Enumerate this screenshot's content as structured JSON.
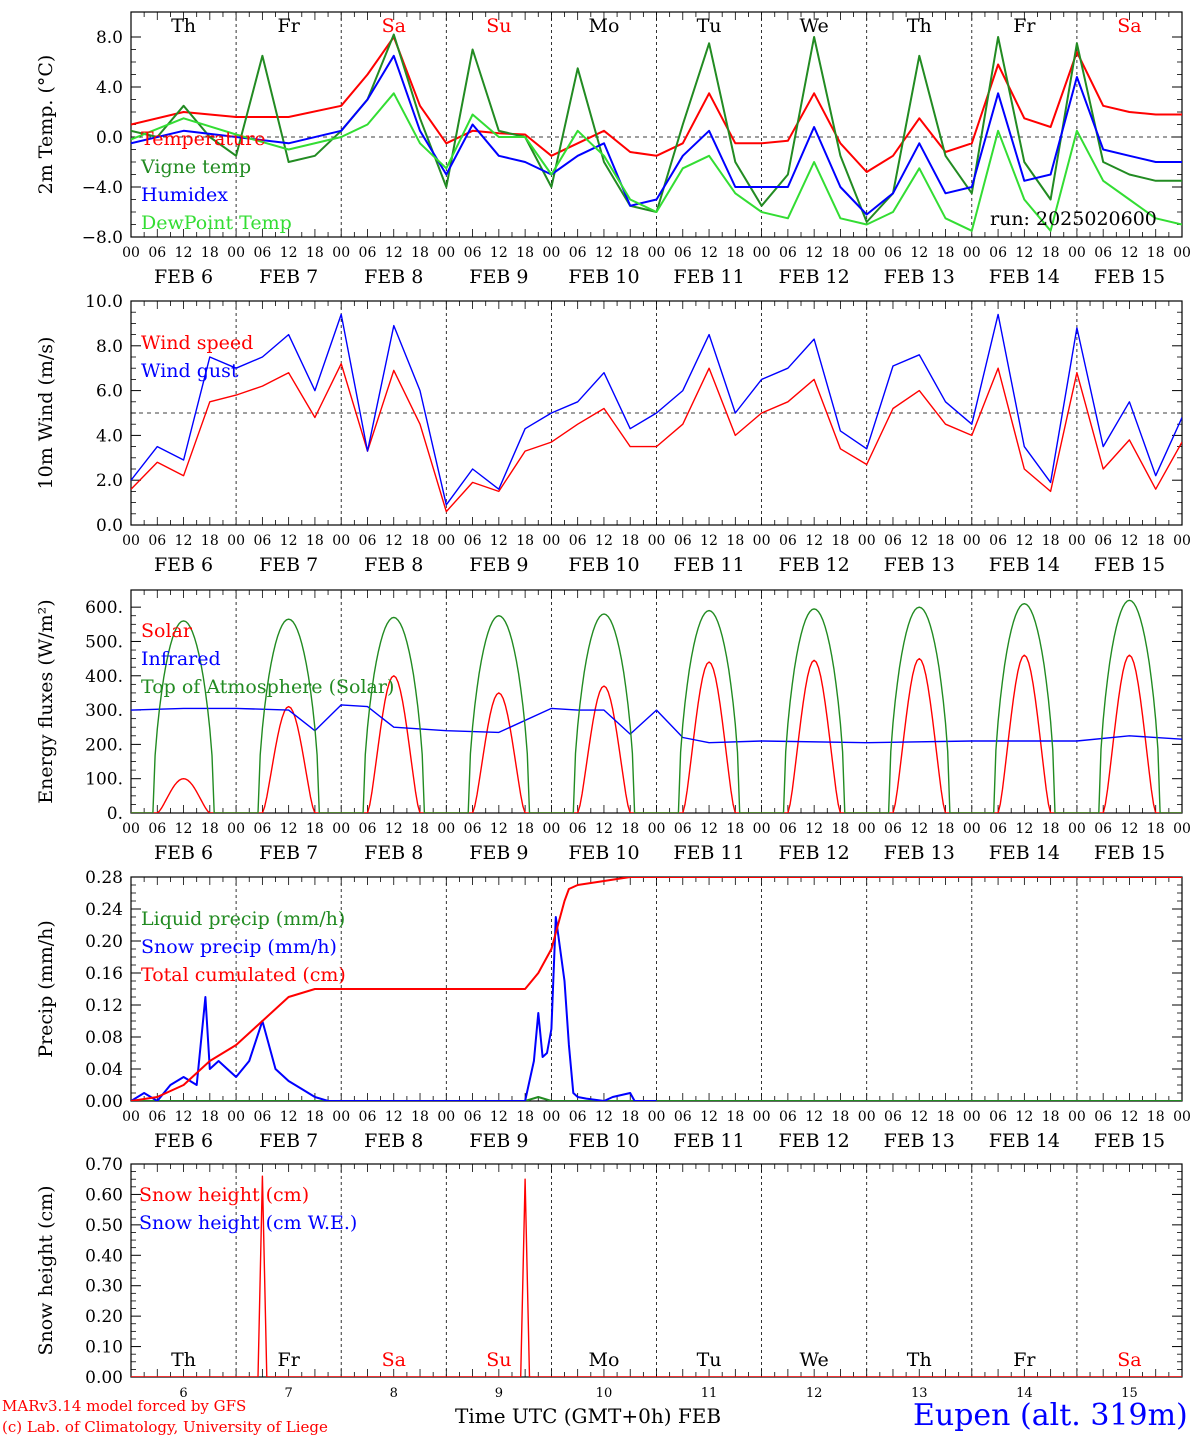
{
  "header": {
    "run_label": "run: 2025020600",
    "station": "Eupen (alt. 319m)",
    "credit_line1": "MARv3.14 model forced by GFS",
    "credit_line2": "(c) Lab. of Climatology, University of Liege",
    "xaxis_title": "Time UTC (GMT+0h) FEB"
  },
  "colors": {
    "red": "#ff0000",
    "green": "#228b22",
    "blue": "#0000ff",
    "lightgreen": "#33dd33",
    "axis": "#000000"
  },
  "chart_data": [
    {
      "type": "line",
      "id": "temp",
      "ylabel": "2m Temp. (°C)",
      "ylim": [
        -8,
        10
      ],
      "yticks": [
        -8,
        -4,
        0,
        4,
        8
      ],
      "ytick_labels": [
        "−8.0",
        "−4.0",
        "0.0",
        "4.0",
        "8.0"
      ],
      "ref_line": 0,
      "day_labels_top": [
        {
          "day": "Th",
          "weekend": false
        },
        {
          "day": "Fr",
          "weekend": false
        },
        {
          "day": "Sa",
          "weekend": true
        },
        {
          "day": "Su",
          "weekend": true
        },
        {
          "day": "Mo",
          "weekend": false
        },
        {
          "day": "Tu",
          "weekend": false
        },
        {
          "day": "We",
          "weekend": false
        },
        {
          "day": "Th",
          "weekend": false
        },
        {
          "day": "Fr",
          "weekend": false
        },
        {
          "day": "Sa",
          "weekend": true
        }
      ],
      "series": [
        {
          "name": "Temperature",
          "color": "red",
          "x": [
            0,
            12,
            24,
            36,
            48,
            54,
            60,
            66,
            72,
            78,
            84,
            90,
            96,
            102,
            108,
            114,
            120,
            126,
            132,
            138,
            144,
            150,
            156,
            162,
            168,
            174,
            180,
            186,
            192,
            198,
            204,
            210,
            216,
            222,
            228,
            234,
            240
          ],
          "y": [
            1.0,
            2.0,
            1.6,
            1.6,
            2.5,
            5.0,
            8.0,
            2.5,
            -0.5,
            0.5,
            0.3,
            0.2,
            -1.5,
            -0.5,
            0.5,
            -1.2,
            -1.5,
            -0.5,
            3.5,
            -0.5,
            -0.5,
            -0.3,
            3.5,
            -0.5,
            -2.8,
            -1.5,
            1.5,
            -1.2,
            -0.5,
            5.8,
            1.5,
            0.8,
            6.8,
            2.5,
            2.0,
            1.8,
            1.8
          ]
        },
        {
          "name": "Vigne temp",
          "color": "green",
          "x": [
            0,
            6,
            12,
            18,
            24,
            30,
            36,
            42,
            48,
            54,
            60,
            66,
            72,
            78,
            84,
            90,
            96,
            102,
            108,
            114,
            120,
            126,
            132,
            138,
            144,
            150,
            156,
            162,
            168,
            174,
            180,
            186,
            192,
            198,
            204,
            210,
            216,
            222,
            228,
            234,
            240
          ],
          "y": [
            0.5,
            0.0,
            2.5,
            0.0,
            -1.5,
            6.5,
            -2.0,
            -1.5,
            0.5,
            3.0,
            8.2,
            1.5,
            -4.0,
            7.0,
            0.5,
            0.0,
            -4.0,
            5.5,
            -2.0,
            -5.5,
            -6.0,
            1.0,
            7.5,
            -2.0,
            -5.5,
            -3.0,
            8.0,
            -1.5,
            -6.8,
            -4.5,
            6.5,
            -1.5,
            -4.5,
            8.0,
            -2.0,
            -5.0,
            7.5,
            -2.0,
            -3.0,
            -3.5,
            -3.5
          ]
        },
        {
          "name": "Humidex",
          "color": "blue",
          "x": [
            0,
            12,
            24,
            36,
            48,
            54,
            60,
            66,
            72,
            78,
            84,
            90,
            96,
            102,
            108,
            114,
            120,
            126,
            132,
            138,
            144,
            150,
            156,
            162,
            168,
            174,
            180,
            186,
            192,
            198,
            204,
            210,
            216,
            222,
            228,
            234,
            240
          ],
          "y": [
            -0.5,
            0.5,
            0.0,
            -0.5,
            0.5,
            3.0,
            6.5,
            0.5,
            -3.0,
            1.0,
            -1.5,
            -2.0,
            -3.0,
            -1.5,
            -0.5,
            -5.5,
            -5.0,
            -1.5,
            0.5,
            -4.0,
            -4.0,
            -4.0,
            0.8,
            -4.0,
            -6.2,
            -4.5,
            -0.5,
            -4.5,
            -4.0,
            3.5,
            -3.5,
            -3.0,
            4.8,
            -1.0,
            -1.5,
            -2.0,
            -2.0
          ]
        },
        {
          "name": "DewPoint Temp",
          "color": "lightgreen",
          "x": [
            0,
            12,
            24,
            36,
            48,
            54,
            60,
            66,
            72,
            78,
            84,
            90,
            96,
            102,
            108,
            114,
            120,
            126,
            132,
            138,
            144,
            150,
            156,
            162,
            168,
            174,
            180,
            186,
            192,
            198,
            204,
            210,
            216,
            222,
            228,
            234,
            240
          ],
          "y": [
            -0.2,
            1.5,
            0.2,
            -1.0,
            0.0,
            1.0,
            3.5,
            -0.5,
            -2.5,
            1.8,
            0.0,
            0.0,
            -3.0,
            0.5,
            -1.5,
            -5.0,
            -6.0,
            -2.5,
            -1.5,
            -4.5,
            -6.0,
            -6.5,
            -2.0,
            -6.5,
            -7.0,
            -6.0,
            -2.5,
            -6.5,
            -7.5,
            0.5,
            -5.0,
            -7.5,
            0.5,
            -3.5,
            -5.0,
            -6.5,
            -7.0
          ]
        }
      ]
    },
    {
      "type": "line",
      "id": "wind",
      "ylabel": "10m Wind (m/s)",
      "ylim": [
        0,
        10
      ],
      "yticks": [
        0,
        2,
        4,
        6,
        8,
        10
      ],
      "ytick_labels": [
        "0.0",
        "2.0",
        "4.0",
        "6.0",
        "8.0",
        "10.0"
      ],
      "ref_line": 5,
      "series": [
        {
          "name": "Wind speed",
          "color": "red",
          "x": [
            0,
            6,
            12,
            18,
            24,
            30,
            36,
            42,
            48,
            54,
            60,
            66,
            72,
            78,
            84,
            90,
            96,
            102,
            108,
            114,
            120,
            126,
            132,
            138,
            144,
            150,
            156,
            162,
            168,
            174,
            180,
            186,
            192,
            198,
            204,
            210,
            216,
            222,
            228,
            234,
            240
          ],
          "y": [
            1.6,
            2.8,
            2.2,
            5.5,
            5.8,
            6.2,
            6.8,
            4.8,
            7.2,
            3.3,
            6.9,
            4.5,
            0.6,
            1.9,
            1.5,
            3.3,
            3.7,
            4.5,
            5.2,
            3.5,
            3.5,
            4.5,
            7.0,
            4.0,
            5.0,
            5.5,
            6.5,
            3.4,
            2.7,
            5.2,
            6.0,
            4.5,
            4.0,
            7.0,
            2.5,
            1.5,
            6.8,
            2.5,
            3.8,
            1.6,
            3.7
          ]
        },
        {
          "name": "Wind gust",
          "color": "blue",
          "x": [
            0,
            6,
            12,
            18,
            24,
            30,
            36,
            42,
            48,
            54,
            60,
            66,
            72,
            78,
            84,
            90,
            96,
            102,
            108,
            114,
            120,
            126,
            132,
            138,
            144,
            150,
            156,
            162,
            168,
            174,
            180,
            186,
            192,
            198,
            204,
            210,
            216,
            222,
            228,
            234,
            240
          ],
          "y": [
            2.0,
            3.5,
            2.9,
            7.5,
            7.0,
            7.5,
            8.5,
            6.0,
            9.4,
            3.3,
            8.9,
            6.0,
            0.9,
            2.5,
            1.6,
            4.3,
            5.0,
            5.5,
            6.8,
            4.3,
            5.0,
            6.0,
            8.5,
            5.0,
            6.5,
            7.0,
            8.3,
            4.2,
            3.4,
            7.1,
            7.6,
            5.5,
            4.5,
            9.4,
            3.5,
            1.9,
            8.8,
            3.5,
            5.5,
            2.2,
            4.8
          ]
        }
      ]
    },
    {
      "type": "line",
      "id": "flux",
      "ylabel": "Energy fluxes (W/m²)",
      "ylim": [
        0,
        650
      ],
      "yticks": [
        0,
        100,
        200,
        300,
        400,
        500,
        600
      ],
      "ytick_labels": [
        "0.",
        "100.",
        "200.",
        "300.",
        "400.",
        "500.",
        "600."
      ],
      "series": [
        {
          "name": "Solar",
          "color": "red",
          "solar_peaks": [
            100,
            310,
            400,
            350,
            370,
            440,
            445,
            450,
            460,
            460
          ]
        },
        {
          "name": "Infrared",
          "color": "blue",
          "x": [
            0,
            12,
            24,
            36,
            42,
            48,
            54,
            60,
            66,
            72,
            84,
            96,
            102,
            108,
            114,
            120,
            126,
            132,
            144,
            168,
            192,
            216,
            228,
            240
          ],
          "y": [
            300,
            305,
            305,
            300,
            240,
            315,
            310,
            250,
            245,
            240,
            235,
            305,
            300,
            300,
            230,
            300,
            220,
            205,
            210,
            205,
            210,
            210,
            225,
            215
          ]
        },
        {
          "name": "Top of Atmosphere (Solar)",
          "color": "green",
          "toa_peaks": [
            560,
            565,
            570,
            575,
            580,
            590,
            595,
            600,
            610,
            620
          ]
        }
      ]
    },
    {
      "type": "line",
      "id": "precip",
      "ylabel": "Precip (mm/h)",
      "ylim": [
        0,
        0.28
      ],
      "yticks": [
        0,
        0.04,
        0.08,
        0.12,
        0.16,
        0.2,
        0.24,
        0.28
      ],
      "ytick_labels": [
        "0.00",
        "0.04",
        "0.08",
        "0.12",
        "0.16",
        "0.20",
        "0.24",
        "0.28"
      ],
      "series": [
        {
          "name": "Liquid precip (mm/h)",
          "color": "green",
          "x": [
            0,
            90,
            93,
            96,
            99,
            240
          ],
          "y": [
            0,
            0,
            0.005,
            0.0,
            0.0,
            0
          ]
        },
        {
          "name": "Snow precip (mm/h)",
          "color": "blue",
          "x": [
            0,
            3,
            6,
            9,
            12,
            15,
            17,
            18,
            20,
            22,
            24,
            27,
            30,
            33,
            36,
            39,
            42,
            45,
            90,
            92,
            93,
            94,
            95,
            96,
            97,
            99,
            100,
            101,
            102,
            104,
            108,
            110,
            114,
            115,
            120
          ],
          "y": [
            0,
            0.01,
            0.0,
            0.02,
            0.03,
            0.02,
            0.13,
            0.04,
            0.05,
            0.04,
            0.03,
            0.05,
            0.1,
            0.04,
            0.025,
            0.015,
            0.005,
            0,
            0,
            0.05,
            0.11,
            0.055,
            0.06,
            0.09,
            0.23,
            0.15,
            0.07,
            0.01,
            0.005,
            0.003,
            0.0,
            0.005,
            0.01,
            0.0,
            0
          ]
        },
        {
          "name": "Total cumulated (cm)",
          "color": "red",
          "x": [
            0,
            6,
            12,
            18,
            24,
            30,
            36,
            42,
            48,
            60,
            72,
            84,
            90,
            93,
            96,
            99,
            100,
            102,
            108,
            114,
            120,
            240
          ],
          "y": [
            0,
            0.005,
            0.02,
            0.05,
            0.07,
            0.1,
            0.13,
            0.14,
            0.14,
            0.14,
            0.14,
            0.14,
            0.14,
            0.16,
            0.19,
            0.25,
            0.265,
            0.27,
            0.275,
            0.28,
            0.28,
            0.28
          ]
        }
      ]
    },
    {
      "type": "line",
      "id": "snow",
      "ylabel": "Snow height (cm)",
      "ylim": [
        0,
        0.7
      ],
      "yticks": [
        0,
        0.1,
        0.2,
        0.3,
        0.4,
        0.5,
        0.6,
        0.7
      ],
      "ytick_labels": [
        "0.00",
        "0.10",
        "0.20",
        "0.30",
        "0.40",
        "0.50",
        "0.60",
        "0.70"
      ],
      "day_labels_bottom": [
        {
          "day": "Th",
          "weekend": false
        },
        {
          "day": "Fr",
          "weekend": false
        },
        {
          "day": "Sa",
          "weekend": true
        },
        {
          "day": "Su",
          "weekend": true
        },
        {
          "day": "Mo",
          "weekend": false
        },
        {
          "day": "Tu",
          "weekend": false
        },
        {
          "day": "We",
          "weekend": false
        },
        {
          "day": "Th",
          "weekend": false
        },
        {
          "day": "Fr",
          "weekend": false
        },
        {
          "day": "Sa",
          "weekend": true
        }
      ],
      "date_numbers": [
        "6",
        "7",
        "8",
        "9",
        "10",
        "11",
        "12",
        "13",
        "14",
        "15"
      ],
      "series": [
        {
          "name": "Snow height (cm)",
          "color": "red",
          "x": [
            0,
            29,
            30,
            31,
            89,
            90,
            91,
            240
          ],
          "y": [
            0,
            0,
            0.66,
            0,
            0,
            0.65,
            0,
            0
          ]
        },
        {
          "name": "Snow height (cm W.E.)",
          "color": "blue",
          "x": [],
          "y": []
        }
      ]
    }
  ],
  "xaxis": {
    "hour_labels": [
      "00",
      "06",
      "12",
      "18"
    ],
    "date_labels": [
      "FEB  6",
      "FEB  7",
      "FEB  8",
      "FEB  9",
      "FEB 10",
      "FEB 11",
      "FEB 12",
      "FEB 13",
      "FEB 14",
      "FEB 15"
    ],
    "end_label": "00"
  }
}
